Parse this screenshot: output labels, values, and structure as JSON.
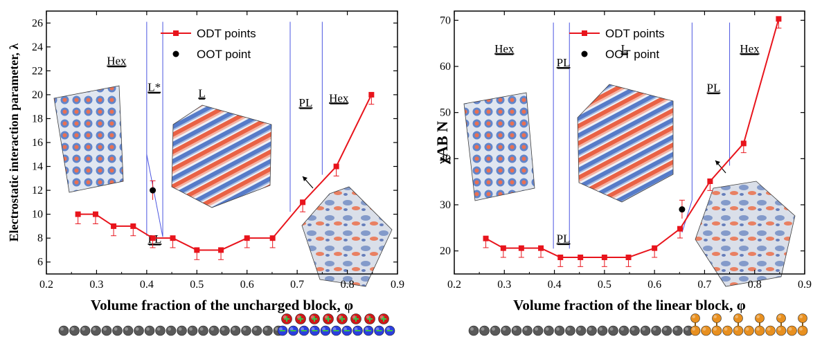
{
  "chart_data": [
    {
      "type": "line",
      "xlabel": "Volume fraction of the uncharged block, φ",
      "ylabel": "Electrostatic interaction parameter, λ",
      "xlim": [
        0.2,
        0.9
      ],
      "ylim": [
        5,
        27
      ],
      "x_ticks": [
        "0.2",
        "0.3",
        "0.4",
        "0.5",
        "0.6",
        "0.7",
        "0.8",
        "0.9"
      ],
      "y_ticks": [
        "6",
        "8",
        "10",
        "12",
        "14",
        "16",
        "18",
        "20",
        "22",
        "24",
        "26"
      ],
      "legend": {
        "position": "top",
        "entries": [
          "ODT points",
          "OOT point"
        ]
      },
      "series": [
        {
          "name": "ODT points",
          "x": [
            0.263,
            0.298,
            0.334,
            0.373,
            0.412,
            0.452,
            0.5,
            0.548,
            0.6,
            0.651,
            0.711,
            0.778,
            0.848
          ],
          "y": [
            10,
            10,
            9,
            9,
            8,
            8,
            7,
            7,
            8,
            8,
            11,
            14,
            20
          ],
          "err": [
            0.8,
            0.8,
            0.8,
            0.8,
            0.8,
            0.8,
            0.8,
            0.8,
            0.8,
            0.8,
            0.8,
            0.8,
            0.8
          ],
          "color": "#e8141c"
        },
        {
          "name": "OOT point",
          "x": [
            0.412
          ],
          "y": [
            12
          ],
          "err": [
            0.8
          ],
          "color": "#000000"
        }
      ],
      "boundaries": [
        [
          [
            0.4,
            26.1
          ],
          [
            0.4,
            8.2
          ]
        ],
        [
          [
            0.4,
            15
          ],
          [
            0.432,
            8.1
          ]
        ],
        [
          [
            0.432,
            8.1
          ],
          [
            0.432,
            26.1
          ]
        ],
        [
          [
            0.686,
            26.1
          ],
          [
            0.686,
            10.2
          ]
        ],
        [
          [
            0.75,
            26.1
          ],
          [
            0.75,
            13.3
          ]
        ]
      ],
      "phase_labels": [
        {
          "text": "Hex",
          "x": 0.34,
          "y": 22.5
        },
        {
          "text": "L*",
          "x": 0.415,
          "y": 20.3
        },
        {
          "text": "L",
          "x": 0.51,
          "y": 19.8
        },
        {
          "text": "PL",
          "x": 0.717,
          "y": 19.0
        },
        {
          "text": "Hex",
          "x": 0.783,
          "y": 19.4
        },
        {
          "text": "PL",
          "x": 0.416,
          "y": 7.6
        }
      ]
    },
    {
      "type": "line",
      "xlabel": "Volume fraction of the linear block, φ",
      "ylabel": "χAB N",
      "xlim": [
        0.2,
        0.9
      ],
      "ylim": [
        15,
        72
      ],
      "x_ticks": [
        "0.2",
        "0.3",
        "0.4",
        "0.5",
        "0.6",
        "0.7",
        "0.8",
        "0.9"
      ],
      "y_ticks": [
        "20",
        "30",
        "40",
        "50",
        "60",
        "70"
      ],
      "legend": {
        "position": "top",
        "entries": [
          "ODT points",
          "OOT point"
        ]
      },
      "series": [
        {
          "name": "ODT points",
          "x": [
            0.263,
            0.298,
            0.334,
            0.373,
            0.412,
            0.452,
            0.5,
            0.548,
            0.6,
            0.651,
            0.711,
            0.778,
            0.848
          ],
          "y": [
            22.7,
            20.6,
            20.6,
            20.6,
            18.6,
            18.6,
            18.6,
            18.6,
            20.6,
            24.8,
            35.1,
            43.3,
            70.3
          ],
          "err": [
            2.0,
            2.0,
            2.0,
            2.0,
            2.0,
            2.0,
            2.0,
            2.0,
            2.0,
            2.0,
            2.0,
            2.0,
            2.0
          ],
          "color": "#e8141c"
        },
        {
          "name": "OOT point",
          "x": [
            0.655
          ],
          "y": [
            29
          ],
          "err": [
            2.0
          ],
          "color": "#000000"
        }
      ],
      "boundaries": [
        [
          [
            0.398,
            69.5
          ],
          [
            0.398,
            20.5
          ]
        ],
        [
          [
            0.43,
            69.5
          ],
          [
            0.43,
            20.5
          ]
        ],
        [
          [
            0.675,
            69.5
          ],
          [
            0.675,
            31.0
          ]
        ],
        [
          [
            0.675,
            31.0
          ],
          [
            0.655,
            24.0
          ]
        ],
        [
          [
            0.75,
            69.5
          ],
          [
            0.75,
            38.5
          ]
        ]
      ],
      "phase_labels": [
        {
          "text": "Hex",
          "x": 0.3,
          "y": 63
        },
        {
          "text": "PL",
          "x": 0.418,
          "y": 60
        },
        {
          "text": "L",
          "x": 0.54,
          "y": 63
        },
        {
          "text": "PL",
          "x": 0.718,
          "y": 54.5
        },
        {
          "text": "Hex",
          "x": 0.79,
          "y": 63
        },
        {
          "text": "PL",
          "x": 0.418,
          "y": 21.8
        }
      ]
    }
  ],
  "colors": {
    "series_red": "#e8141c",
    "boundary_blue": "#4b55e0",
    "bead_gray": "#5a5a5a",
    "bead_blue": "#2c3ee0",
    "bead_red": "#d01818",
    "bead_green": "#3bc24a",
    "bead_orange": "#e89020"
  }
}
